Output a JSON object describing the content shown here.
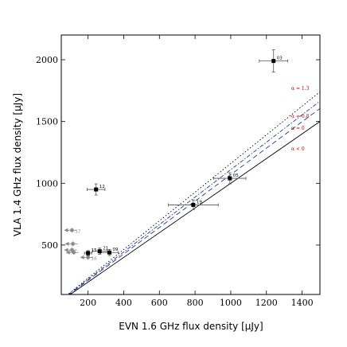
{
  "chart_data": {
    "type": "scatter",
    "xlabel": "EVN 1.6 GHz flux density [μJy]",
    "ylabel": "VLA 1.4 GHz flux density [μJy]",
    "xlim": [
      50,
      1500
    ],
    "ylim": [
      100,
      2200
    ],
    "xticks": [
      200,
      400,
      600,
      800,
      1000,
      1200,
      1400
    ],
    "yticks": [
      500,
      1000,
      1500,
      2000
    ],
    "detections": [
      {
        "label": "03",
        "x": 1240,
        "y": 1990,
        "xerr": 80,
        "yerr": 90
      },
      {
        "label": "12",
        "x": 245,
        "y": 950,
        "xerr": 50,
        "yerr": 45
      },
      {
        "label": "05",
        "x": 995,
        "y": 1040,
        "xerr": 90,
        "yerr": 45
      },
      {
        "label": "19",
        "x": 790,
        "y": 825,
        "xerr": 140,
        "yerr": 40
      },
      {
        "label": "09",
        "x": 320,
        "y": 440,
        "xerr": 50,
        "yerr": 25
      },
      {
        "label": "21",
        "x": 265,
        "y": 450,
        "xerr": 40,
        "yerr": 25
      },
      {
        "label": "15",
        "x": 200,
        "y": 435,
        "xerr": 20,
        "yerr": 20
      }
    ],
    "upper_limits": [
      {
        "label": "17",
        "x": 110,
        "y": 620
      },
      {
        "label": "",
        "x": 115,
        "y": 510
      },
      {
        "label": "",
        "x": 110,
        "y": 460
      },
      {
        "label": "",
        "x": 120,
        "y": 440
      },
      {
        "label": "16",
        "x": 200,
        "y": 400
      }
    ],
    "reference_lines": [
      {
        "label": "α = 1.3",
        "slope": 1.16,
        "style": "dotted",
        "color": "#000000",
        "label_color": "#cc0000"
      },
      {
        "label": "α = 0.8",
        "slope": 1.11,
        "style": "dashdot",
        "color": "#1f3a93",
        "label_color": "#cc0000"
      },
      {
        "label": "α = 0",
        "slope": 1.07,
        "style": "dashed",
        "color": "#1f3a93",
        "label_color": "#cc0000"
      },
      {
        "label": "α < 0",
        "slope": 1.0,
        "style": "solid",
        "color": "#000000",
        "label_color": "#cc0000"
      }
    ]
  }
}
